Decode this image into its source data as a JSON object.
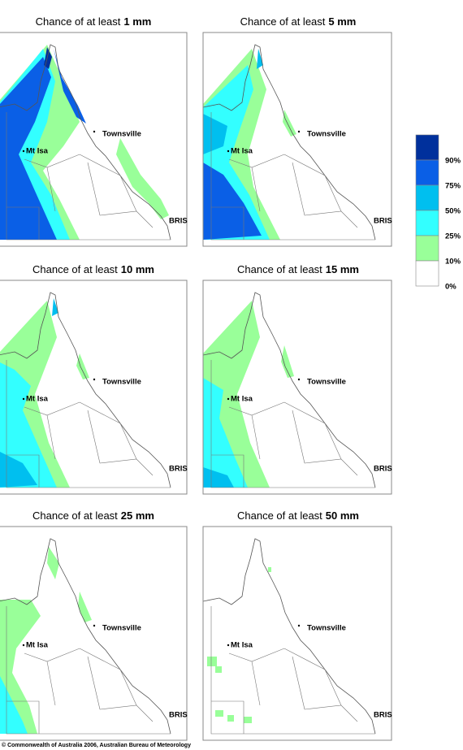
{
  "panels": [
    {
      "title": "Chance of at least",
      "amount": "1 mm"
    },
    {
      "title": "Chance of at least",
      "amount": "5 mm"
    },
    {
      "title": "Chance of at least",
      "amount": "10 mm"
    },
    {
      "title": "Chance of at least",
      "amount": "15 mm"
    },
    {
      "title": "Chance of at least",
      "amount": "25 mm"
    },
    {
      "title": "Chance of at least",
      "amount": "50 mm"
    }
  ],
  "places": [
    "Townsville",
    "Mt Isa",
    "BRIS"
  ],
  "legend": [
    {
      "label": "90%",
      "color": "#00309c"
    },
    {
      "label": "75%",
      "color": "#0a5fe6"
    },
    {
      "label": "50%",
      "color": "#00bfef"
    },
    {
      "label": "25%",
      "color": "#33ffff"
    },
    {
      "label": "10%",
      "color": "#99ff99"
    },
    {
      "label": "0%",
      "color": "#ffffff"
    }
  ],
  "copyright": "© Commonwealth of Australia 2006, Australian Bureau of Meteorology"
}
